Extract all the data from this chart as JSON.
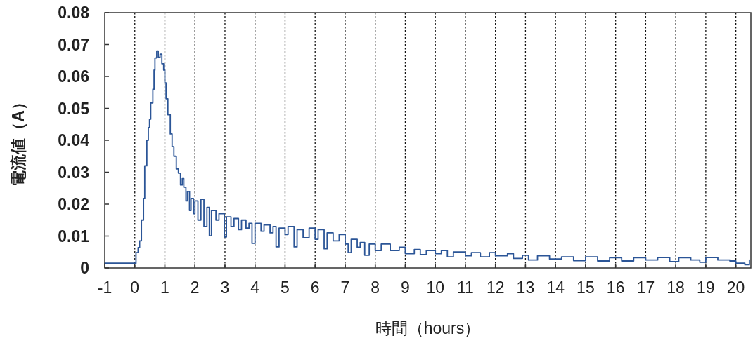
{
  "chart_data": {
    "type": "step",
    "xlabel": "時間（hours）",
    "ylabel": "電流値（A）",
    "color": "#2b5597",
    "x": [
      -1,
      0,
      0.04,
      0.11,
      0.16,
      0.22,
      0.29,
      0.33,
      0.4,
      0.45,
      0.49,
      0.53,
      0.6,
      0.64,
      0.67,
      0.73,
      0.78,
      0.84,
      0.9,
      0.96,
      1.0,
      1.04,
      1.1,
      1.18,
      1.24,
      1.3,
      1.38,
      1.45,
      1.52,
      1.58,
      1.63,
      1.7,
      1.75,
      1.82,
      1.87,
      1.95,
      2.0,
      2.1,
      2.2,
      2.3,
      2.4,
      2.48,
      2.55,
      2.7,
      2.8,
      2.98,
      3.05,
      3.2,
      3.3,
      3.45,
      3.55,
      3.7,
      3.8,
      3.9,
      4.0,
      4.2,
      4.3,
      4.5,
      4.6,
      4.7,
      4.8,
      5.0,
      5.1,
      5.3,
      5.4,
      5.6,
      5.8,
      6.0,
      6.1,
      6.3,
      6.4,
      6.6,
      6.8,
      7.0,
      7.1,
      7.2,
      7.4,
      7.5,
      7.65,
      7.8,
      8.0,
      8.2,
      8.5,
      8.8,
      9.0,
      9.3,
      9.5,
      9.7,
      10.0,
      10.2,
      10.4,
      10.6,
      11.0,
      11.2,
      11.5,
      11.8,
      12.0,
      12.4,
      12.6,
      12.9,
      13.1,
      13.4,
      13.8,
      14.2,
      14.6,
      15.0,
      15.4,
      15.8,
      16.2,
      16.6,
      17.0,
      17.4,
      17.8,
      18.1,
      18.5,
      18.8,
      19.0,
      19.4,
      19.8,
      20.0,
      20.3,
      20.45
    ],
    "values": [
      0.0015,
      0.0015,
      0.0048,
      0.0064,
      0.0085,
      0.015,
      0.0218,
      0.032,
      0.04,
      0.044,
      0.0466,
      0.0517,
      0.056,
      0.062,
      0.0658,
      0.068,
      0.066,
      0.067,
      0.064,
      0.062,
      0.058,
      0.053,
      0.048,
      0.042,
      0.038,
      0.035,
      0.031,
      0.0297,
      0.026,
      0.028,
      0.0253,
      0.021,
      0.024,
      0.018,
      0.0218,
      0.017,
      0.021,
      0.015,
      0.0215,
      0.013,
      0.019,
      0.0101,
      0.018,
      0.015,
      0.017,
      0.0097,
      0.016,
      0.013,
      0.0155,
      0.012,
      0.015,
      0.0125,
      0.014,
      0.0077,
      0.014,
      0.0115,
      0.0135,
      0.011,
      0.013,
      0.0066,
      0.0125,
      0.0105,
      0.013,
      0.0066,
      0.012,
      0.0095,
      0.0125,
      0.009,
      0.012,
      0.006,
      0.011,
      0.0085,
      0.0105,
      0.0075,
      0.0048,
      0.009,
      0.0065,
      0.008,
      0.004,
      0.0075,
      0.0055,
      0.0075,
      0.0055,
      0.0065,
      0.0045,
      0.0058,
      0.0042,
      0.0055,
      0.0045,
      0.0055,
      0.0035,
      0.005,
      0.0038,
      0.0048,
      0.0035,
      0.0048,
      0.0038,
      0.0045,
      0.003,
      0.004,
      0.0025,
      0.0038,
      0.0028,
      0.0035,
      0.0023,
      0.0035,
      0.0022,
      0.0032,
      0.0022,
      0.0032,
      0.0025,
      0.0033,
      0.002,
      0.0032,
      0.0025,
      0.0018,
      0.0033,
      0.0025,
      0.0022,
      0.0015,
      0.001,
      0.0025
    ],
    "xlim": [
      -1,
      20.5
    ],
    "ylim": [
      0,
      0.08
    ],
    "xticks": [
      -1,
      0,
      1,
      2,
      3,
      4,
      5,
      6,
      7,
      8,
      9,
      10,
      11,
      12,
      13,
      14,
      15,
      16,
      17,
      18,
      19,
      20
    ],
    "yticks": [
      0,
      0.01,
      0.02,
      0.03,
      0.04,
      0.05,
      0.06,
      0.07,
      0.08
    ],
    "grid": "x"
  }
}
